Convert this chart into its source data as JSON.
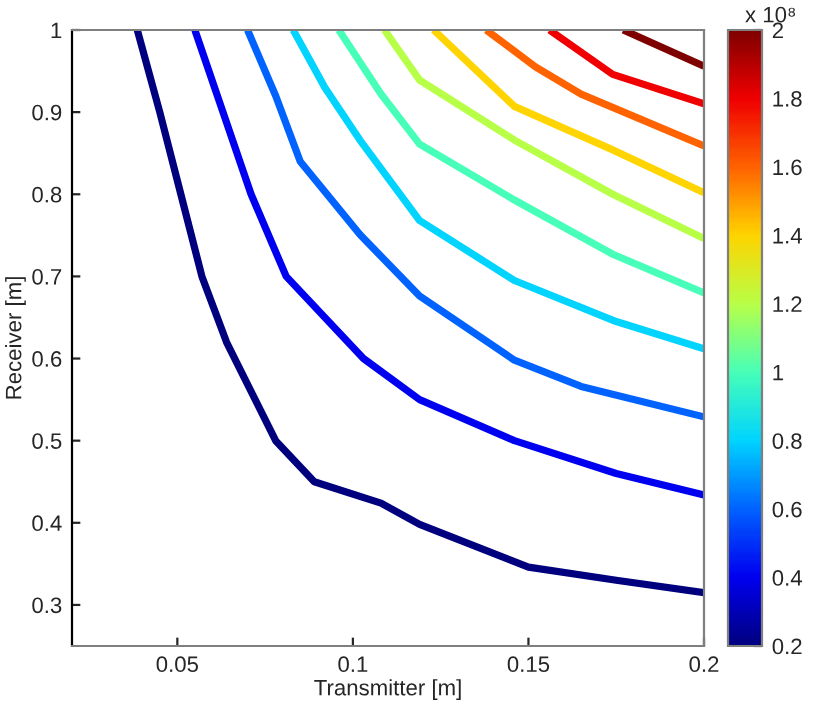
{
  "chart_data": {
    "type": "line",
    "xlabel": "Transmitter [m]",
    "ylabel": "Receiver [m]",
    "clabel": "x 10⁸",
    "xlim": [
      0.02,
      0.2
    ],
    "xticks": [
      0.05,
      0.1,
      0.15,
      0.2
    ],
    "ylim": [
      0.25,
      1
    ],
    "yticks": [
      0.3,
      0.4,
      0.5,
      0.6,
      0.7,
      0.8,
      0.9,
      1
    ],
    "clim": [
      0.2,
      2
    ],
    "cticks": [
      0.2,
      0.4,
      0.6,
      0.8,
      1,
      1.2,
      1.4,
      1.6,
      1.8,
      2
    ],
    "grid": false,
    "legend": false,
    "marker": "none",
    "line_style": "solid",
    "series": [
      {
        "color": "#00007f",
        "x": [
          0.0386,
          0.045,
          0.051,
          0.057,
          0.064,
          0.078,
          0.089,
          0.108,
          0.119,
          0.15,
          0.175,
          0.2
        ],
        "values": [
          1,
          0.9,
          0.8,
          0.7,
          0.62,
          0.5,
          0.45,
          0.424,
          0.398,
          0.346,
          0.33,
          0.315
        ]
      },
      {
        "color": "#0000f0",
        "x": [
          0.055,
          0.063,
          0.071,
          0.081,
          0.103,
          0.119,
          0.146,
          0.175,
          0.2
        ],
        "values": [
          1,
          0.9,
          0.8,
          0.7,
          0.6,
          0.55,
          0.5,
          0.46,
          0.434
        ]
      },
      {
        "color": "#0063ff",
        "x": [
          0.07,
          0.078,
          0.085,
          0.102,
          0.119,
          0.146,
          0.165,
          0.2
        ],
        "values": [
          1,
          0.92,
          0.84,
          0.751,
          0.676,
          0.598,
          0.566,
          0.529
        ]
      },
      {
        "color": "#00d4ff",
        "x": [
          0.083,
          0.092,
          0.102,
          0.119,
          0.146,
          0.175,
          0.2
        ],
        "values": [
          1,
          0.93,
          0.866,
          0.768,
          0.695,
          0.645,
          0.612
        ]
      },
      {
        "color": "#47ffb8",
        "x": [
          0.096,
          0.108,
          0.119,
          0.146,
          0.174,
          0.2
        ],
        "values": [
          1,
          0.922,
          0.861,
          0.793,
          0.727,
          0.68
        ]
      },
      {
        "color": "#b8ff47",
        "x": [
          0.109,
          0.119,
          0.146,
          0.174,
          0.2
        ],
        "values": [
          1,
          0.939,
          0.866,
          0.8,
          0.746
        ]
      },
      {
        "color": "#ffd400",
        "x": [
          0.123,
          0.146,
          0.174,
          0.2
        ],
        "values": [
          1,
          0.907,
          0.854,
          0.802
        ]
      },
      {
        "color": "#ff6300",
        "x": [
          0.138,
          0.152,
          0.165,
          0.2
        ],
        "values": [
          1,
          0.955,
          0.922,
          0.859
        ]
      },
      {
        "color": "#f00000",
        "x": [
          0.156,
          0.174,
          0.2
        ],
        "values": [
          1,
          0.946,
          0.91
        ]
      },
      {
        "color": "#7f0000",
        "x": [
          0.177,
          0.2
        ],
        "values": [
          1,
          0.956
        ]
      }
    ]
  }
}
